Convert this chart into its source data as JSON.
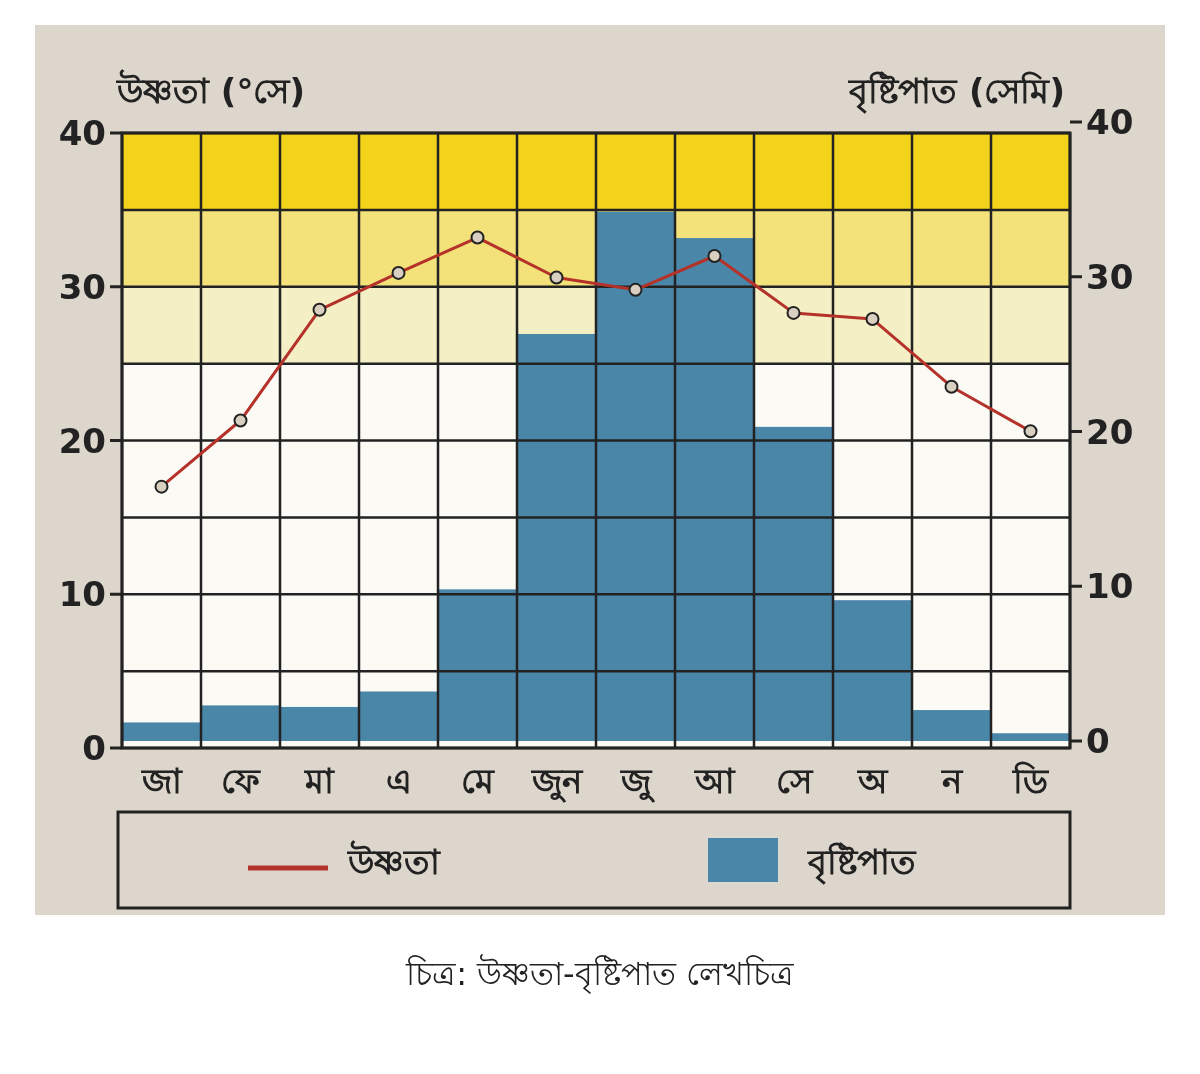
{
  "chart_data": {
    "type": "bar",
    "ylabel": "উষ্ণতা (°সে)",
    "y2label": "বৃষ্টিপাত (সেমি)",
    "categories": [
      "জা",
      "ফে",
      "মা",
      "এ",
      "মে",
      "জুন",
      "জু",
      "আ",
      "সে",
      "অ",
      "ন",
      "ডি"
    ],
    "series": [
      {
        "name": "উষ্ণতা",
        "type": "line",
        "axis": "y",
        "color": "#b5322a",
        "marker": "circle",
        "line_style": "solid",
        "values": [
          17.0,
          21.3,
          28.5,
          30.9,
          33.2,
          30.6,
          29.8,
          32.0,
          28.3,
          27.9,
          23.5,
          20.6
        ]
      },
      {
        "name": "বৃষ্টিপাত",
        "type": "bar",
        "axis": "y2",
        "color": "#4a86a8",
        "values": [
          1.2,
          2.3,
          2.2,
          3.2,
          9.8,
          26.3,
          34.2,
          32.5,
          20.3,
          9.1,
          2.0,
          0.5
        ]
      }
    ],
    "ylim": [
      0,
      40
    ],
    "yticks": [
      0,
      {
        "value": 5,
        "label": null
      },
      10,
      {
        "value": 15,
        "label": null
      },
      20,
      {
        "value": 25,
        "label": null
      },
      30,
      {
        "value": 35,
        "label": null
      },
      40
    ],
    "y2lim": [
      0,
      40
    ],
    "y2ticks": [
      0,
      10,
      20,
      30,
      40
    ],
    "bands": [
      {
        "axis": "y",
        "from": 35,
        "to": 40,
        "color": "#f2d21a"
      },
      {
        "axis": "y",
        "from": 30,
        "to": 35,
        "color": "#f3e27a"
      },
      {
        "axis": "y",
        "from": 25,
        "to": 30,
        "color": "#f4efc4"
      }
    ],
    "grid": true,
    "legend": "bottom",
    "annotations": [
      "চিত্র: উষ্ণতা-বৃষ্টিপাত লেখচিত্র"
    ]
  }
}
